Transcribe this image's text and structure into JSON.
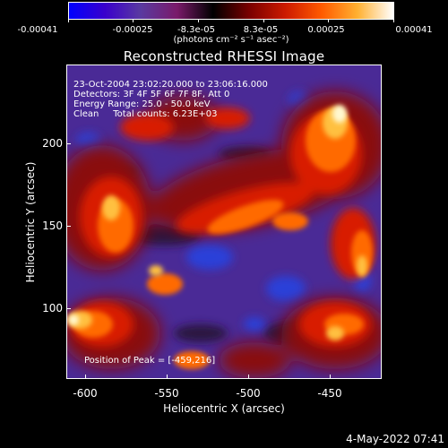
{
  "colorbar": {
    "ticks": [
      "-0.00041",
      "-0.00025",
      "-8.3e-05",
      "8.3e-05",
      "0.00025",
      "0.00041"
    ],
    "units": "(photons cm⁻² s⁻¹ asec⁻²)",
    "colors": [
      "#0000ff",
      "#3a00cc",
      "#5a3aa0",
      "#7a1a6a",
      "#000000",
      "#7a0000",
      "#cc1a00",
      "#ff5a00",
      "#ffb030",
      "#ffffff"
    ]
  },
  "title": "Reconstructed RHESSI Image",
  "info": {
    "time_range": "23-Oct-2004 23:02:20.000 to 23:06:16.000",
    "detectors": "Detectors: 3F 4F 5F 6F 7F 8F, Att 0",
    "energy_range": "Energy Range: 25.0 - 50.0 keV",
    "method_counts": "Clean     Total counts: 6.23E+03",
    "peak": "Position of Peak = [-459,216]"
  },
  "axes": {
    "xlabel": "Heliocentric X (arcsec)",
    "ylabel": "Heliocentric Y (arcsec)",
    "xticks": [
      "-600",
      "-550",
      "-500",
      "-450"
    ],
    "yticks": [
      "200",
      "150",
      "100"
    ]
  },
  "footer": {
    "date": "4-May-2022 07:41"
  }
}
